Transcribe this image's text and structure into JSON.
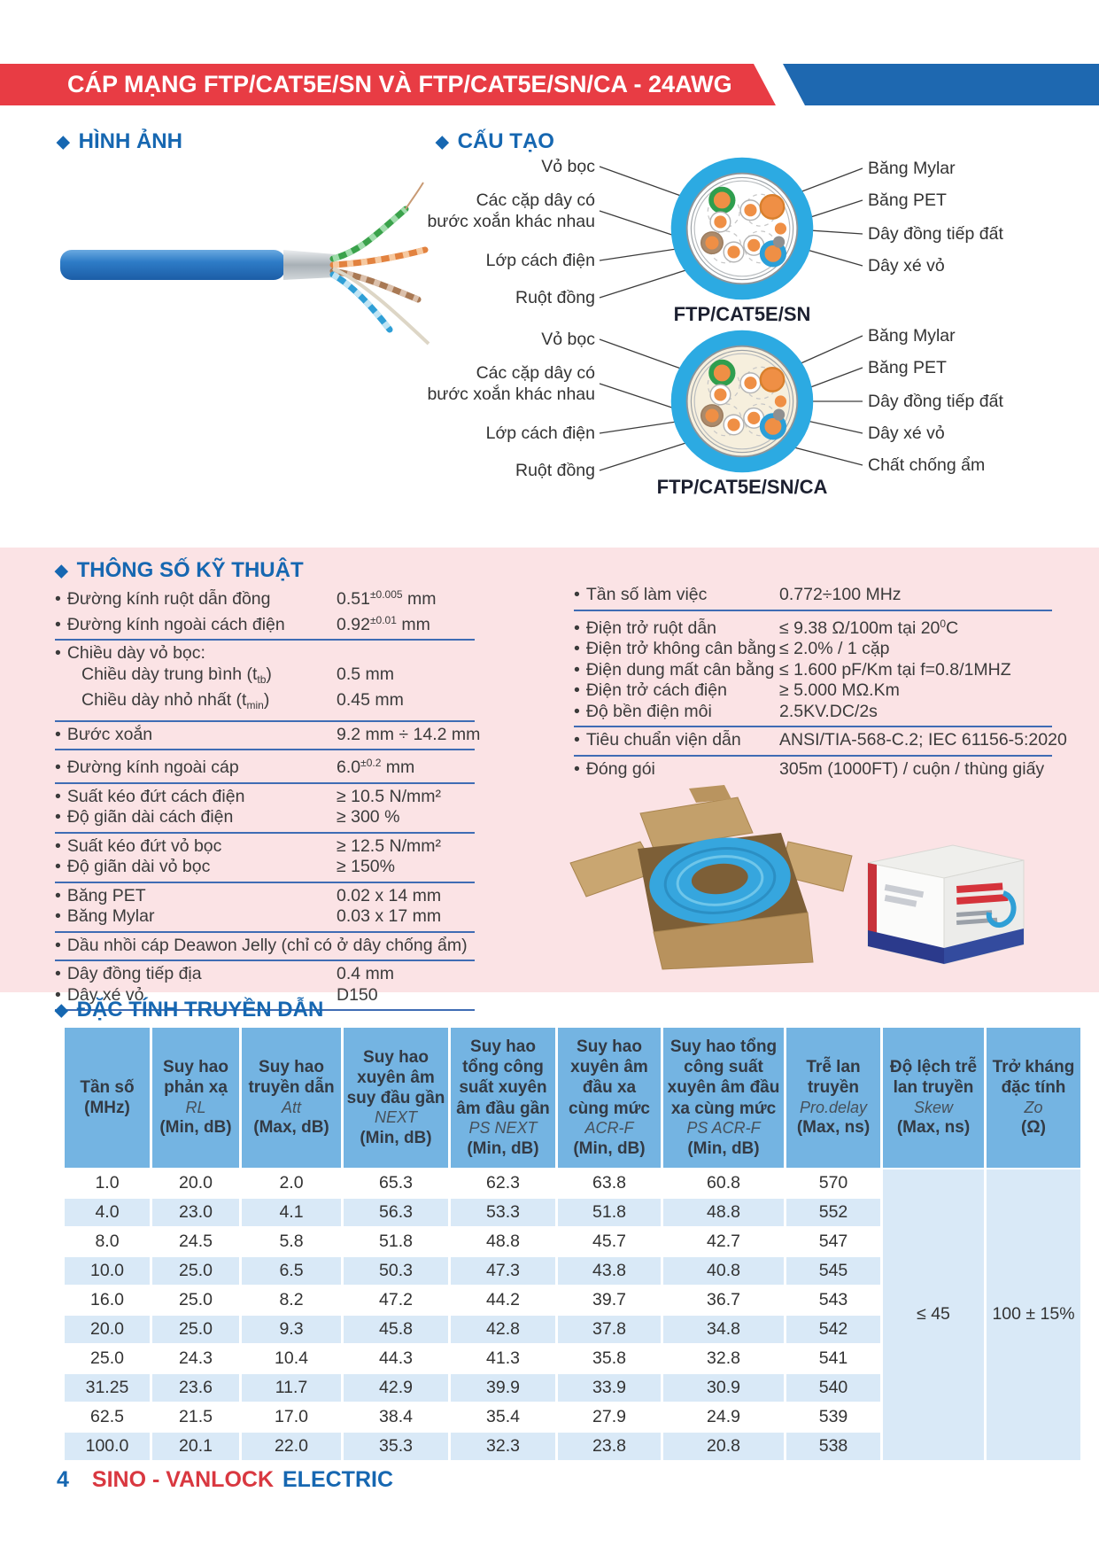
{
  "header": {
    "title": "CÁP MẠNG FTP/CAT5E/SN VÀ FTP/CAT5E/SN/CA - 24AWG"
  },
  "image_section": {
    "title": "HÌNH ẢNH"
  },
  "structure_section": {
    "title": "CẤU TẠO",
    "diagrams": [
      {
        "caption": "FTP/CAT5E/SN",
        "left_labels": [
          "Vỏ bọc",
          "Các cặp dây có\nbước xoắn khác nhau",
          "Lớp cách điện",
          "Ruột đồng"
        ],
        "right_labels": [
          "Băng Mylar",
          "Băng PET",
          "Dây đồng tiếp đất",
          "Dây xé vỏ"
        ]
      },
      {
        "caption": "FTP/CAT5E/SN/CA",
        "left_labels": [
          "Vỏ bọc",
          "Các cặp dây có\nbước xoắn khác nhau",
          "Lớp cách điện",
          "Ruột đồng"
        ],
        "right_labels": [
          "Băng Mylar",
          "Băng PET",
          "Dây đồng tiếp đất",
          "Dây xé vỏ",
          "Chất chống ẩm"
        ]
      }
    ]
  },
  "specs": {
    "title": "THÔNG SỐ KỸ THUẬT",
    "left": [
      {
        "label": "Đường kính ruột dẫn đồng",
        "value": "0.51",
        "sup": "±0.005",
        "unit": " mm"
      },
      {
        "label": "Đường kính ngoài cách điện",
        "value": "0.92",
        "sup": "±0.01",
        "unit": " mm"
      },
      {
        "label": "Chiều dày vỏ bọc:"
      },
      {
        "label": "Chiều dày trung bình (t",
        "sub": "tb",
        "post": ")",
        "value": "0.5 mm"
      },
      {
        "label": "Chiều dày nhỏ nhất (t",
        "sub": "min",
        "post": ")",
        "value": "0.45 mm"
      },
      {
        "label": "Bước xoắn",
        "value": "9.2 mm ÷ 14.2 mm"
      },
      {
        "label": "Đường kính ngoài cáp",
        "value": "6.0",
        "sup": "±0.2",
        "unit": " mm"
      },
      {
        "label": "Suất kéo đứt cách điện",
        "value": "≥ 10.5 N/mm²"
      },
      {
        "label": "Độ giãn dài cách điện",
        "value": "≥ 300 %"
      },
      {
        "label": "Suất kéo đứt vỏ bọc",
        "value": "≥ 12.5 N/mm²"
      },
      {
        "label": "Độ giãn dài vỏ bọc",
        "value": "≥ 150%"
      },
      {
        "label": "Băng PET",
        "value": "0.02 x 14 mm"
      },
      {
        "label": "Băng Mylar",
        "value": "0.03 x 17 mm"
      },
      {
        "label": "Dầu nhồi cáp Deawon Jelly (chỉ có ở dây chống ẩm)"
      },
      {
        "label": "Dây đồng tiếp địa",
        "value": "0.4 mm"
      },
      {
        "label": "Dây xé vỏ",
        "value": "D150"
      }
    ],
    "right": [
      {
        "label": "Tần số làm việc",
        "value": "0.772÷100 MHz"
      },
      {
        "label": "Điện trở ruột dẫn",
        "value": "≤ 9.38 Ω/100m tại 20",
        "sup": "0",
        "unit": "C"
      },
      {
        "label": "Điện trở không cân bằng",
        "value": "≤ 2.0% / 1 cặp"
      },
      {
        "label": "Điện dung mất cân bằng",
        "value": "≤ 1.600 pF/Km tại f=0.8/1MHZ"
      },
      {
        "label": "Điện trở cách điện",
        "value": "≥ 5.000 MΩ.Km"
      },
      {
        "label": "Độ bền điện môi",
        "value": "2.5KV.DC/2s"
      },
      {
        "label": "Tiêu chuẩn viện dẫn",
        "value": "ANSI/TIA-568-C.2; IEC 61156-5:2020"
      },
      {
        "label": "Đóng gói",
        "value": "305m (1000FT) / cuộn / thùng giấy"
      }
    ]
  },
  "transmission": {
    "title": "ĐẶC TÍNH TRUYỀN DẪN",
    "columns": [
      {
        "title": "Tần số",
        "unit": "(MHz)"
      },
      {
        "title": "Suy hao phản xạ",
        "code": "RL",
        "unit": "(Min, dB)"
      },
      {
        "title": "Suy hao truyền dẫn",
        "code": "Att",
        "unit": "(Max, dB)"
      },
      {
        "title": "Suy hao xuyên âm suy đầu gần",
        "code": "NEXT",
        "unit": "(Min, dB)"
      },
      {
        "title": "Suy hao tổng công suất xuyên âm đầu gần",
        "code": "PS NEXT",
        "unit": "(Min, dB)"
      },
      {
        "title": "Suy hao xuyên âm đầu xa cùng mức",
        "code": "ACR-F",
        "unit": "(Min, dB)"
      },
      {
        "title": "Suy hao tổng công suất xuyên âm đầu xa cùng mức",
        "code": "PS ACR-F",
        "unit": "(Min, dB)"
      },
      {
        "title": "Trễ lan truyền",
        "code": "Pro.delay",
        "unit": "(Max, ns)"
      },
      {
        "title": "Độ lệch trễ lan truyền",
        "code": "Skew",
        "unit": "(Max, ns)"
      },
      {
        "title": "Trở kháng đặc tính",
        "code": "Zo",
        "unit": "(Ω)"
      }
    ],
    "rows": [
      [
        "1.0",
        "20.0",
        "2.0",
        "65.3",
        "62.3",
        "63.8",
        "60.8",
        "570"
      ],
      [
        "4.0",
        "23.0",
        "4.1",
        "56.3",
        "53.3",
        "51.8",
        "48.8",
        "552"
      ],
      [
        "8.0",
        "24.5",
        "5.8",
        "51.8",
        "48.8",
        "45.7",
        "42.7",
        "547"
      ],
      [
        "10.0",
        "25.0",
        "6.5",
        "50.3",
        "47.3",
        "43.8",
        "40.8",
        "545"
      ],
      [
        "16.0",
        "25.0",
        "8.2",
        "47.2",
        "44.2",
        "39.7",
        "36.7",
        "543"
      ],
      [
        "20.0",
        "25.0",
        "9.3",
        "45.8",
        "42.8",
        "37.8",
        "34.8",
        "542"
      ],
      [
        "25.0",
        "24.3",
        "10.4",
        "44.3",
        "41.3",
        "35.8",
        "32.8",
        "541"
      ],
      [
        "31.25",
        "23.6",
        "11.7",
        "42.9",
        "39.9",
        "33.9",
        "30.9",
        "540"
      ],
      [
        "62.5",
        "21.5",
        "17.0",
        "38.4",
        "35.4",
        "27.9",
        "24.9",
        "539"
      ],
      [
        "100.0",
        "20.1",
        "22.0",
        "35.3",
        "32.3",
        "23.8",
        "20.8",
        "538"
      ]
    ],
    "skew_merged": "≤ 45",
    "impedance_merged": "100 ± 15%"
  },
  "footer": {
    "page_number": "4",
    "brand_red": "SINO - VANLOCK",
    "brand_blue": "ELECTRIC"
  },
  "colors": {
    "accent_red": "#e83c44",
    "accent_blue": "#1e68b0",
    "title_blue": "#1667b1",
    "pink_bg": "#fbe3e5",
    "table_header_blue": "#74b4e2",
    "row_alt_blue": "#d9e9f7",
    "cable_jacket_blue": "#2e7cc7",
    "diagram_ring_blue": "#2caae2",
    "conductor_orange": "#ef8f45"
  }
}
